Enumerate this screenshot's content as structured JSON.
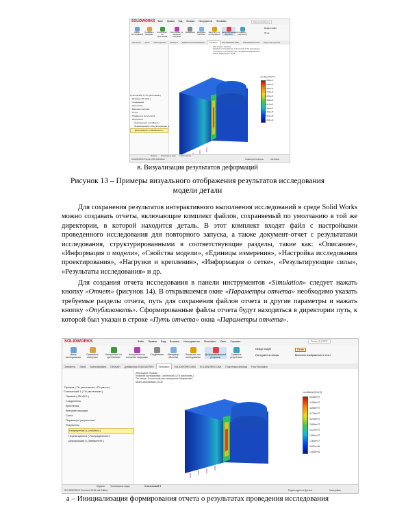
{
  "shot_top": {
    "app_name": "SOLIDWORKS",
    "menu": [
      "Файл",
      "Правка",
      "Вид",
      "Вставка",
      "Инструменты",
      "Simulation",
      "Окно",
      "Справка"
    ],
    "search_placeholder": "Поиск SolidWorks",
    "ribbon": [
      "Новое исследование",
      "Применить материал",
      "Консультант по креплениям",
      "Консультант по внешним нагрузкам",
      "Соединения",
      "Менеджер оболочки",
      "Запустить это исследование",
      "Деформированный результат",
      "Сравнить результаты",
      "Design Insight",
      "Отчет"
    ],
    "tabs": [
      "Элементы",
      "Эскиз",
      "Анализировать",
      "DimXpert",
      "Добавления SOLIDWORKS",
      "Simulation",
      "SOLIDWORKS MBD",
      "SOLIDWORKS CAM",
      "Подготовка анализа"
    ],
    "tree": [
      "Статический 1 (-По умолчанию-)",
      "Прижим (-ПК-АКС-)",
      "Соединения",
      "Крепления",
      "Внешние нагрузки",
      "Сетка",
      "Параметры результатов",
      "Результаты",
      "Напряжение1 (-vonMises-)",
      "Перемещение1 (-Результирующее перемещение-)",
      "Деформация1 (-Эквивалент-)"
    ],
    "viewport_info": [
      "Имя модели: Прижим",
      "Название исследования: Статический 1(-По умолчанию-)",
      "Тип эпюры: Статический узел напряжение Напряжение1",
      "Шкала деформации: 28,38"
    ],
    "legend_title": "von Mises (N/m^2)",
    "legend_values": [
      "5,318e+07",
      "4,786e+07",
      "4,255e+07",
      "3,723e+07",
      "3,191e+07",
      "2,659e+07",
      "2,127e+07",
      "1,596e+07",
      "1,064e+07",
      "5,322e+06",
      "1,903e+04"
    ],
    "bottom_tabs": [
      "Модель",
      "Трехмерные виды",
      "Статический 1"
    ],
    "status_left": "SOLIDWORKS Premium 2018 x64 Edition",
    "status_right": [
      "Редактируется Деталь",
      "Настройка"
    ]
  },
  "caption_v": "в. Визуализация результатов деформаций",
  "figure_caption": [
    "Рисунок 13 – Примеры визуального отображения результатов исследования",
    "модели детали"
  ],
  "paragraph1": "Для сохранения результатов интерактивного выполнения исследований в среде Solid Works можно создавать отчеты, включающие комплект файлов, сохраняемый по умолчанию в той же директории, в которой находится деталь. В этот комплект входят файл с настройками проведенного исследования для повторного запуска, а также документ-отчет с результатами исследования, структурированными в соответствующие разделы, такие как: «Описание», «Информация о модели», «Свойства модели», «Единицы измерения», «Настройка исследования проектирования», «Нагрузки и крепления», «Информация о сетке», «Результирующие силы», «Результаты исследования» и др.",
  "paragraph2": {
    "t1": "Для создания отчета исследования в панели инструментов ",
    "e1": "«Simulation»",
    "t2": " следует нажать кнопку ",
    "e2": "«Отчет»",
    "t3": " (рисунок 14). В открывшемся окне ",
    "e3": "«Параметры отчета»",
    "t4": " необходимо указать требуемые разделы отчета, путь для сохранения файлов отчета и другие параметры и нажать кнопку ",
    "e4": "«Опубликовать»",
    "t5": ". Сформированные файлы отчета будут находиться в директории путь, к которой был указан в строке ",
    "e5": "«Путь отчета»",
    "t6": " окна ",
    "e6": "«Параметры отчета»",
    "t7": "."
  },
  "shot_bottom": {
    "app_name": "SOLIDWORKS",
    "menu": [
      "Файл",
      "Правка",
      "Вид",
      "Вставка",
      "Инструменты",
      "Simulation",
      "Окно",
      "Справка"
    ],
    "search_placeholder": "Поиск SLDPRT",
    "ribbon": [
      "Новое исследование",
      "Применить материал",
      "Консультант по креплениям",
      "Консультант по внешним нагрузкам",
      "Соединения",
      "Менеджер оболочки",
      "Запустить это исследование",
      "Деформированный результат",
      "Сравнить результаты",
      "Design Insight",
      "Инструменты эпюры",
      "Отчет",
      "Включить изображение в отчет"
    ],
    "tabs": [
      "Элементы",
      "Эскиз",
      "Анализировать",
      "DimXpert",
      "Добавления SOLIDWORKS",
      "Simulation",
      "SOLIDWORKS MBD",
      "SOLIDWORKS CAM",
      "Подготовка анализа",
      "Flow Simulation"
    ],
    "tree_top": "Прижим (-По умолчанию<<По умолч-)",
    "tree": [
      "Статический 1 (-По умолчанию-)",
      "Прижим (-ПК-АКС-)",
      "Соединения",
      "Крепления",
      "Внешние нагрузки",
      "Сетка",
      "Параметры результатов",
      "Результаты",
      "Напряжение1 (-vonMises-)",
      "Перемещение1 (-Распределение-)",
      "Деформация1 (-Эквивалент-)"
    ],
    "viewport_info": [
      "Имя модели: Прижим",
      "Название исследования: Статический 1(-По умолчанию-)",
      "Тип эпюры: Статический узел напряжение Напряжение1",
      "Шкала деформации: 28,38"
    ],
    "legend_title": "von Mises (N/m^2)",
    "legend_values": [
      "5,318e+07",
      "4,786e+07",
      "4,255e+07",
      "3,723e+07",
      "3,191e+07",
      "2,659e+07",
      "2,127e+07",
      "1,596e+07",
      "1,064e+07",
      "5,322e+06",
      "1,903e+04"
    ],
    "bottom_tabs": [
      "Модель",
      "Трехмерные виды",
      "Статический 1"
    ],
    "status_left": "SOLIDWORKS Premium 2018 x64 Edition",
    "status_right": [
      "Редактируется Деталь",
      "Настройка"
    ]
  },
  "caption_a": "а – Инициализация формирования отчета о результатах проведения исследования",
  "colors": {
    "accent": "#c8102e",
    "highlight": "#fff3a0"
  }
}
